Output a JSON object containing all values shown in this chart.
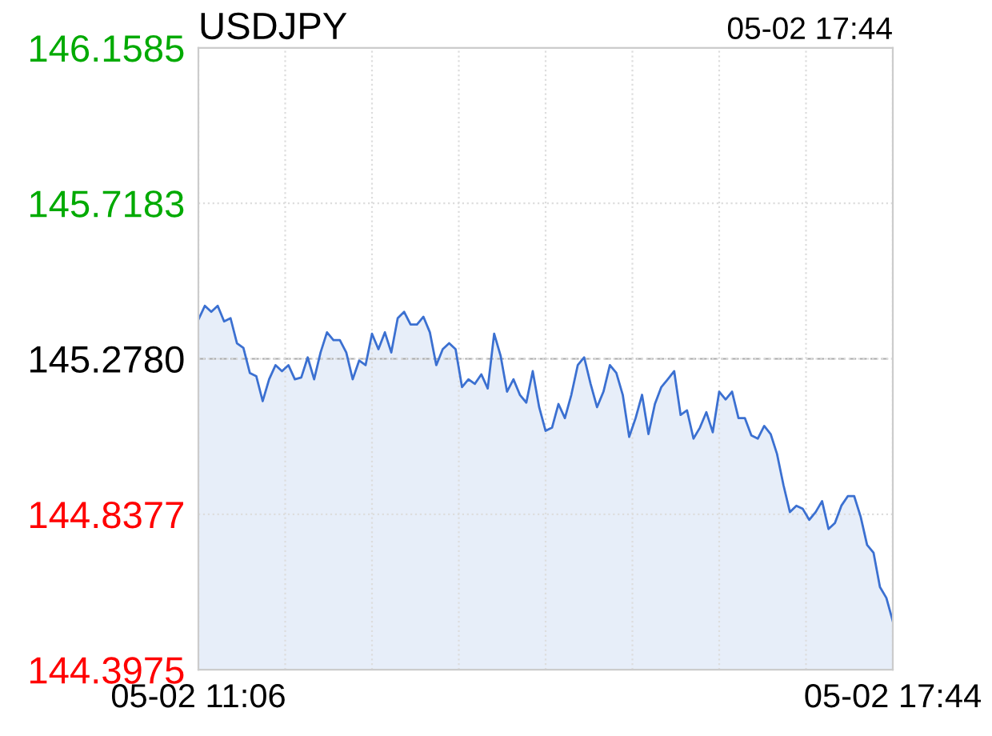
{
  "chart_data": {
    "type": "area",
    "title": "USDJPY",
    "annotations": [
      "05-02 17:44"
    ],
    "categories": [
      "05-02 11:06",
      null,
      null,
      null,
      null,
      null,
      null,
      null,
      null,
      null,
      null,
      null,
      null,
      null,
      null,
      null,
      null,
      null,
      null,
      null,
      null,
      null,
      null,
      null,
      null,
      null,
      null,
      null,
      null,
      null,
      null,
      null,
      null,
      null,
      null,
      null,
      null,
      null,
      null,
      null,
      null,
      null,
      null,
      null,
      null,
      null,
      null,
      null,
      null,
      null,
      null,
      null,
      null,
      null,
      null,
      null,
      null,
      null,
      null,
      null,
      null,
      null,
      null,
      null,
      null,
      null,
      null,
      null,
      null,
      null,
      null,
      null,
      null,
      null,
      null,
      null,
      null,
      null,
      null,
      null,
      null,
      null,
      null,
      null,
      null,
      null,
      null,
      null,
      null,
      null,
      null,
      null,
      null,
      null,
      null,
      null,
      null,
      null,
      null,
      null,
      null,
      null,
      null,
      null,
      null,
      null,
      null,
      null,
      "05-02 17:44"
    ],
    "ylim": [
      144.3975,
      146.1585
    ],
    "yticks": [
      144.3975,
      144.8377,
      {
        "value": 145.278,
        "label": "145.2780"
      },
      145.7183,
      146.1585
    ],
    "grid": true,
    "ref_lines": [
      {
        "axis": "y",
        "value": 145.278,
        "color": "#aaaaaa",
        "line_style": "dashed"
      }
    ],
    "series": [
      {
        "color": "#3b70d1",
        "values": [
          145.389,
          145.428,
          145.411,
          145.428,
          145.384,
          145.393,
          145.322,
          145.309,
          145.238,
          145.229,
          145.158,
          145.22,
          145.26,
          145.243,
          145.26,
          145.22,
          145.225,
          145.282,
          145.22,
          145.296,
          145.353,
          145.331,
          145.331,
          145.296,
          145.22,
          145.273,
          145.26,
          145.349,
          145.305,
          145.353,
          145.296,
          145.393,
          145.411,
          145.375,
          145.375,
          145.397,
          145.353,
          145.26,
          145.305,
          145.322,
          145.305,
          145.198,
          145.22,
          145.207,
          145.234,
          145.194,
          145.349,
          145.287,
          145.185,
          145.22,
          145.176,
          145.154,
          145.243,
          145.141,
          145.074,
          145.083,
          145.15,
          145.11,
          145.176,
          145.26,
          145.282,
          145.207,
          145.141,
          145.185,
          145.26,
          145.238,
          145.176,
          145.057,
          145.11,
          145.176,
          145.065,
          145.15,
          145.198,
          145.22,
          145.243,
          145.119,
          145.132,
          145.052,
          145.083,
          145.127,
          145.07,
          145.185,
          145.163,
          145.185,
          145.11,
          145.11,
          145.061,
          145.052,
          145.088,
          145.065,
          145.008,
          144.92,
          144.844,
          144.862,
          144.853,
          144.822,
          144.844,
          144.875,
          144.796,
          144.813,
          144.862,
          144.889,
          144.889,
          144.831,
          144.751,
          144.729,
          144.632,
          144.601,
          144.535
        ]
      }
    ]
  }
}
